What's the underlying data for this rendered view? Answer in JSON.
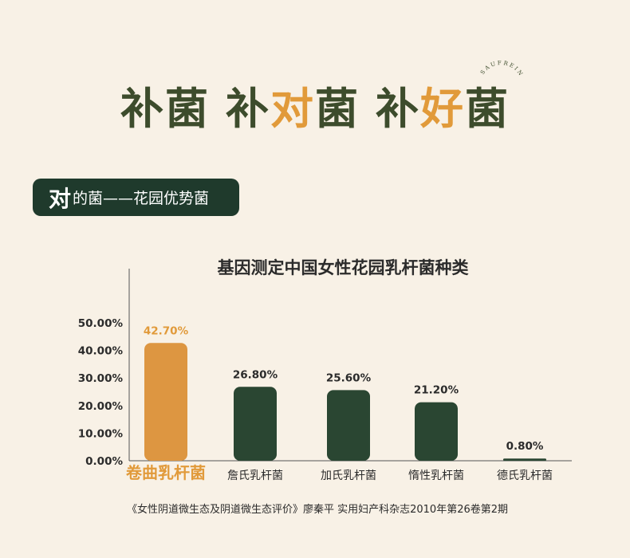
{
  "headline": {
    "part1": "补菌",
    "part2_a": "补",
    "part2_accent": "对",
    "part2_b": "菌",
    "part3_a": "补",
    "part3_accent": "好",
    "part3_b": "菌",
    "brand_arc_text": "SAUFREIN"
  },
  "tag": {
    "big": "对",
    "small": "的菌——花园优势菌"
  },
  "colors": {
    "background": "#f8f1e6",
    "green": "#2a4632",
    "orange": "#dd9641",
    "headline_green": "#3d4c2c",
    "accent": "#e19a3a"
  },
  "chart_data": {
    "type": "bar",
    "title": "基因测定中国女性花园乳杆菌种类",
    "categories": [
      "卷曲乳杆菌",
      "詹氏乳杆菌",
      "加氏乳杆菌",
      "惰性乳杆菌",
      "德氏乳杆菌"
    ],
    "values": [
      42.7,
      26.8,
      25.6,
      21.2,
      0.8
    ],
    "value_labels": [
      "42.70%",
      "26.80%",
      "25.60%",
      "21.20%",
      "0.80%"
    ],
    "highlight_index": 0,
    "yticks": [
      "0.00%",
      "10.00%",
      "20.00%",
      "30.00%",
      "40.00%",
      "50.00%"
    ],
    "ytick_values": [
      0,
      10,
      20,
      30,
      40,
      50
    ],
    "ylim": [
      0,
      50
    ],
    "grid": false,
    "source": "《女性阴道微生态及阴道微生态评价》廖秦平 实用妇产科杂志2010年第26卷第2期"
  }
}
